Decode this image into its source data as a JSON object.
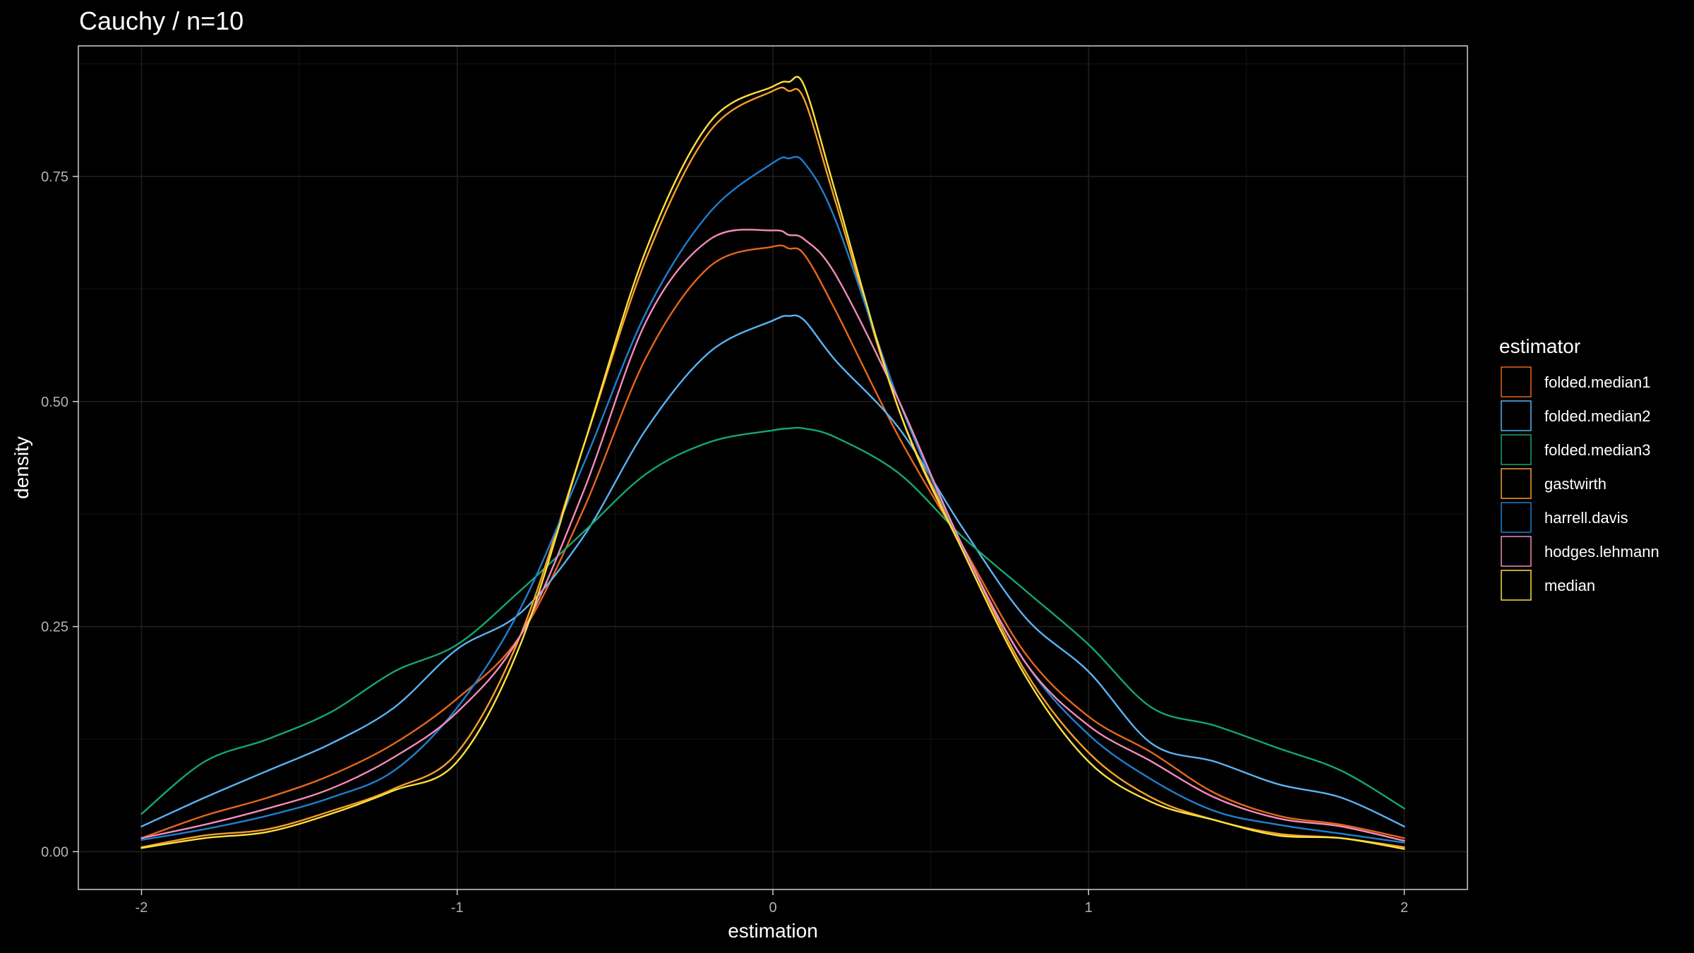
{
  "chart_data": {
    "type": "line",
    "title": "Cauchy / n=10",
    "xlabel": "estimation",
    "ylabel": "density",
    "xlim": [
      -2.2,
      2.2
    ],
    "ylim": [
      -0.042,
      0.895
    ],
    "x_ticks": [
      -2,
      -1,
      0,
      1,
      2
    ],
    "x_tick_labels": [
      "-2",
      "-1",
      "0",
      "1",
      "2"
    ],
    "y_ticks": [
      0,
      0.25,
      0.5,
      0.75
    ],
    "y_tick_labels": [
      "0.00",
      "0.25",
      "0.50",
      "0.75"
    ],
    "grid": true,
    "legend_position": "right",
    "legend_title": "estimator",
    "x": [
      -2.0,
      -1.8,
      -1.6,
      -1.4,
      -1.2,
      -1.0,
      -0.8,
      -0.6,
      -0.4,
      -0.2,
      0.0,
      0.05,
      0.1,
      0.2,
      0.4,
      0.6,
      0.8,
      1.0,
      1.2,
      1.4,
      1.6,
      1.8,
      2.0
    ],
    "series": [
      {
        "name": "folded.median1",
        "color": "#e7661b",
        "values": [
          0.015,
          0.04,
          0.06,
          0.085,
          0.12,
          0.17,
          0.24,
          0.38,
          0.55,
          0.65,
          0.672,
          0.67,
          0.663,
          0.6,
          0.46,
          0.34,
          0.22,
          0.15,
          0.11,
          0.065,
          0.04,
          0.03,
          0.015
        ]
      },
      {
        "name": "folded.median2",
        "color": "#5ab4f5",
        "values": [
          0.028,
          0.06,
          0.09,
          0.12,
          0.16,
          0.225,
          0.265,
          0.35,
          0.47,
          0.555,
          0.59,
          0.595,
          0.59,
          0.545,
          0.47,
          0.36,
          0.26,
          0.2,
          0.12,
          0.1,
          0.075,
          0.06,
          0.028
        ]
      },
      {
        "name": "folded.median3",
        "color": "#13a86e",
        "values": [
          0.042,
          0.1,
          0.125,
          0.155,
          0.2,
          0.23,
          0.29,
          0.355,
          0.42,
          0.455,
          0.468,
          0.47,
          0.47,
          0.46,
          0.42,
          0.35,
          0.29,
          0.23,
          0.16,
          0.14,
          0.115,
          0.09,
          0.048
        ]
      },
      {
        "name": "gastwirth",
        "color": "#f79f2a",
        "values": [
          0.005,
          0.018,
          0.025,
          0.045,
          0.07,
          0.11,
          0.24,
          0.45,
          0.66,
          0.8,
          0.845,
          0.845,
          0.835,
          0.72,
          0.49,
          0.34,
          0.2,
          0.11,
          0.06,
          0.035,
          0.02,
          0.015,
          0.005
        ]
      },
      {
        "name": "harrell.davis",
        "color": "#1f7fd0",
        "values": [
          0.013,
          0.025,
          0.04,
          0.06,
          0.09,
          0.16,
          0.27,
          0.43,
          0.6,
          0.71,
          0.765,
          0.77,
          0.765,
          0.7,
          0.5,
          0.34,
          0.21,
          0.13,
          0.08,
          0.045,
          0.03,
          0.02,
          0.01
        ]
      },
      {
        "name": "hodges.lehmann",
        "color": "#f58bbd",
        "values": [
          0.015,
          0.03,
          0.048,
          0.07,
          0.105,
          0.155,
          0.24,
          0.4,
          0.59,
          0.68,
          0.69,
          0.685,
          0.68,
          0.64,
          0.5,
          0.34,
          0.21,
          0.14,
          0.1,
          0.06,
          0.037,
          0.028,
          0.012
        ]
      },
      {
        "name": "median",
        "color": "#fde13b",
        "values": [
          0.004,
          0.015,
          0.022,
          0.042,
          0.068,
          0.1,
          0.23,
          0.45,
          0.67,
          0.81,
          0.85,
          0.855,
          0.85,
          0.73,
          0.49,
          0.335,
          0.195,
          0.1,
          0.055,
          0.035,
          0.018,
          0.015,
          0.003
        ]
      }
    ]
  }
}
